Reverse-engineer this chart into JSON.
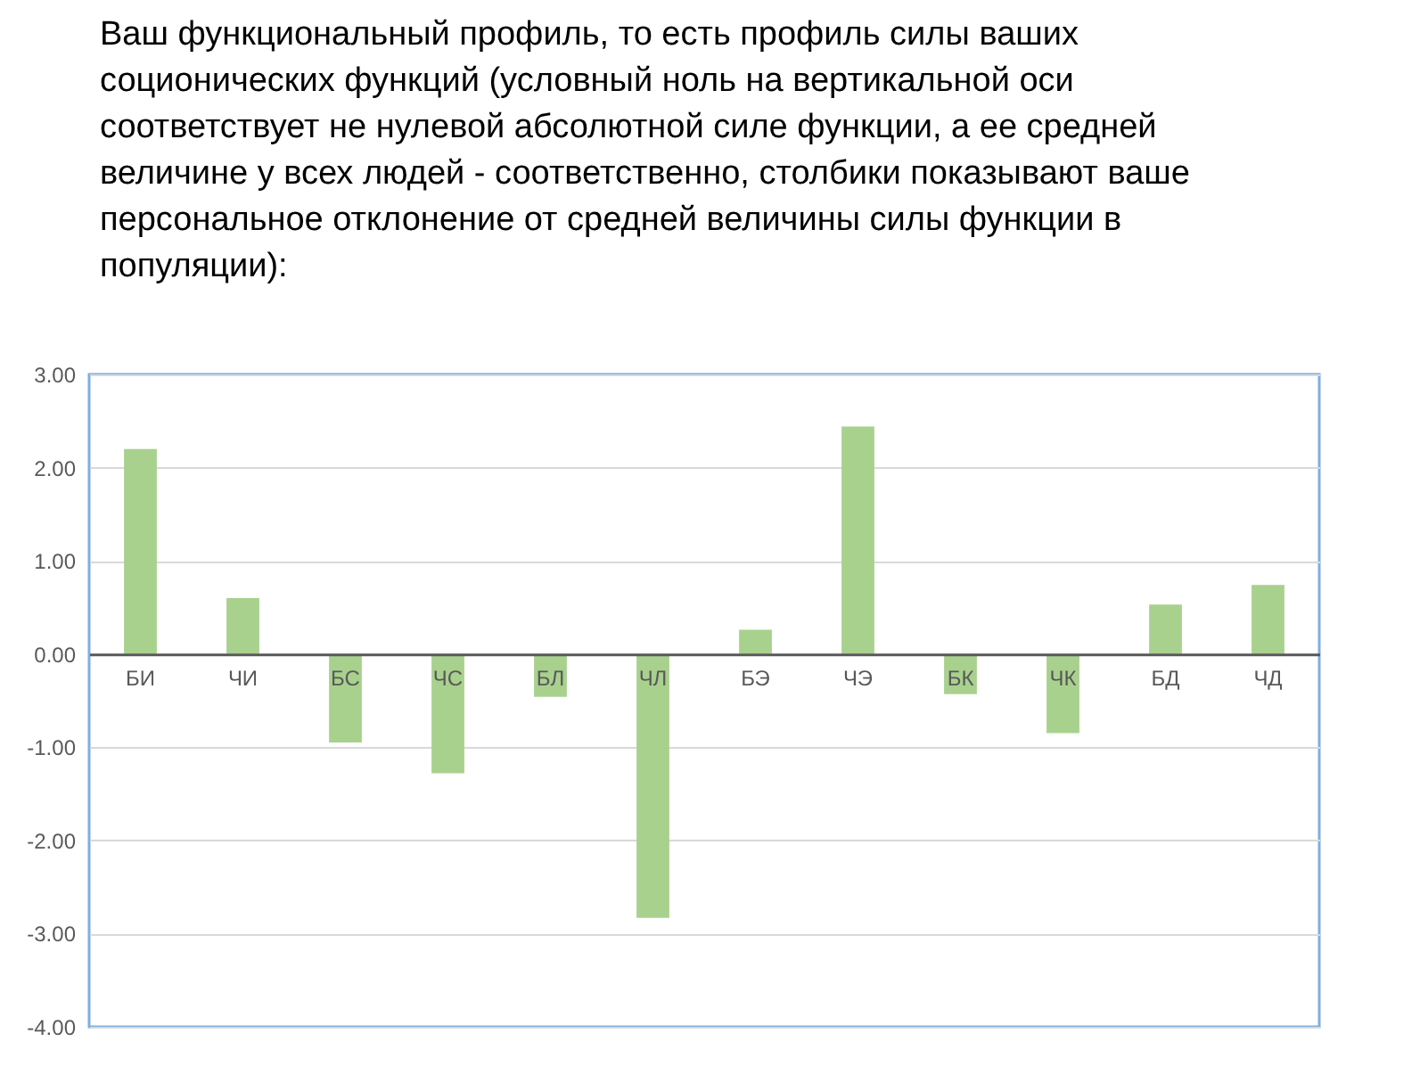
{
  "chart_data": {
    "type": "bar",
    "title": "Ваш функциональный профиль, то есть профиль силы ваших соционических функций (условный ноль на вертикальной оси соответствует не нулевой абсолютной силе функции, а ее средней величине у всех людей - соответственно, столбики показывают ваше персональное отклонение от средней величины силы функции в популяции):",
    "categories": [
      "БИ",
      "ЧИ",
      "БС",
      "ЧС",
      "БЛ",
      "ЧЛ",
      "БЭ",
      "ЧЭ",
      "БК",
      "ЧК",
      "БД",
      "ЧД"
    ],
    "values": [
      2.2,
      0.6,
      -0.95,
      -1.28,
      -0.46,
      -2.83,
      0.26,
      2.44,
      -0.43,
      -0.85,
      0.53,
      0.74
    ],
    "color": "#a9d18e",
    "ylim": [
      -4,
      3
    ],
    "yticks": [
      {
        "value": -4,
        "label": "-4.00"
      },
      {
        "value": -3,
        "label": "-3.00"
      },
      {
        "value": -2,
        "label": "-2.00"
      },
      {
        "value": -1,
        "label": "-1.00"
      },
      {
        "value": 0,
        "label": "0.00"
      },
      {
        "value": 1,
        "label": "1.00"
      },
      {
        "value": 2,
        "label": "2.00"
      },
      {
        "value": 3,
        "label": "3.00"
      }
    ],
    "grid": "y"
  }
}
